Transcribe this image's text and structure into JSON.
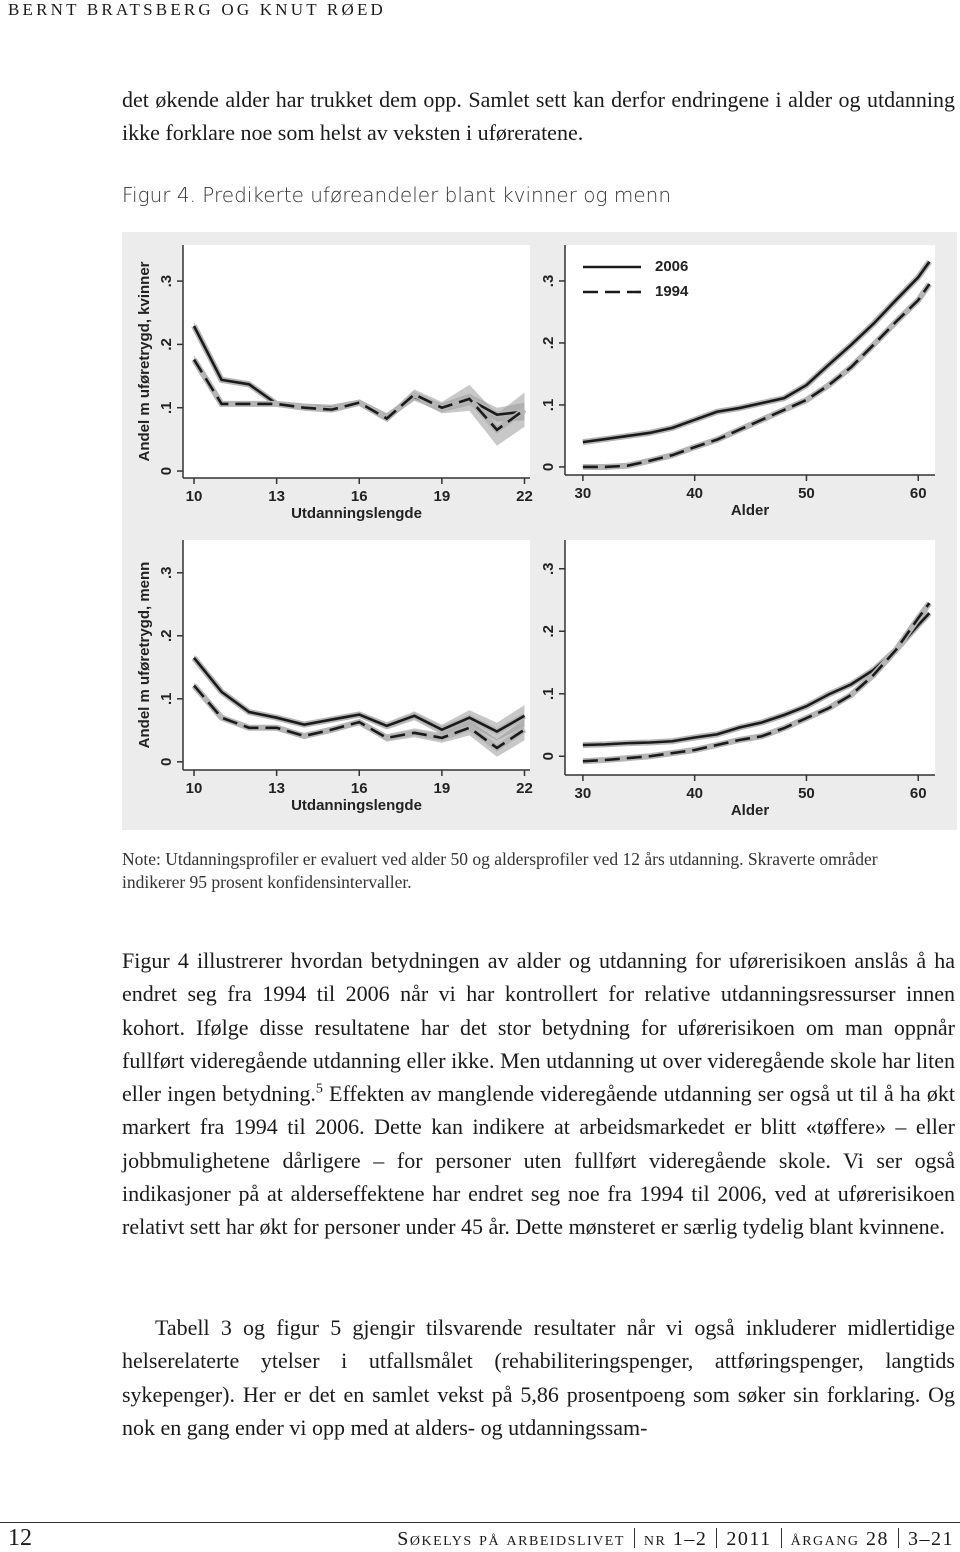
{
  "header": {
    "running_head": "BERNT BRATSBERG OG KNUT RØED"
  },
  "intro_paragraph": "det økende alder har trukket dem opp. Samlet sett kan derfor endringene i alder og utdanning ikke forklare noe som helst av veksten i uføreratene.",
  "figure": {
    "caption": "Figur 4. Predikerte uføreandeler blant kvinner og menn",
    "note": "Note: Utdanningsprofiler er evaluert ved alder 50 og aldersprofiler ved 12 års utdanning. Skraverte områder indikerer 95 prosent konfidensintervaller."
  },
  "chart_data": [
    {
      "type": "line",
      "xlabel": "Utdanningslengde",
      "ylabel": "Andel m uføretrygd, kvinner",
      "x": [
        10,
        11,
        12,
        13,
        14,
        15,
        16,
        17,
        18,
        19,
        20,
        21,
        22
      ],
      "series": [
        {
          "color": "#1a1a1a",
          "dash": false,
          "values": [
            0.229,
            0.144,
            0.137,
            0.106,
            0.102,
            0.1,
            0.108,
            0.086,
            0.117,
            0.1,
            0.113,
            0.089,
            0.094
          ],
          "lower": [
            0.222,
            0.139,
            0.132,
            0.102,
            0.098,
            0.096,
            0.104,
            0.081,
            0.111,
            0.093,
            0.104,
            0.078,
            0.08
          ],
          "upper": [
            0.236,
            0.149,
            0.142,
            0.11,
            0.106,
            0.104,
            0.112,
            0.091,
            0.123,
            0.107,
            0.122,
            0.1,
            0.108
          ]
        },
        {
          "color": "#1a1a1a",
          "dash": true,
          "values": [
            0.176,
            0.106,
            0.106,
            0.106,
            0.1,
            0.097,
            0.108,
            0.083,
            0.121,
            0.1,
            0.114,
            0.065,
            0.097
          ],
          "lower": [
            0.169,
            0.102,
            0.102,
            0.102,
            0.096,
            0.093,
            0.103,
            0.078,
            0.113,
            0.091,
            0.095,
            0.04,
            0.07
          ],
          "upper": [
            0.183,
            0.11,
            0.11,
            0.11,
            0.104,
            0.101,
            0.113,
            0.088,
            0.129,
            0.109,
            0.136,
            0.09,
            0.124
          ]
        }
      ],
      "xlim": [
        9.6,
        22.2
      ],
      "xticks": [
        10,
        13,
        16,
        19,
        22
      ],
      "ylim": [
        -0.011,
        0.357
      ],
      "yticks": [
        0,
        {
          "value": 0.1,
          "label": ".1"
        },
        {
          "value": 0.2,
          "label": ".2"
        },
        {
          "value": 0.3,
          "label": ".3"
        }
      ]
    },
    {
      "type": "line",
      "xlabel": "Alder",
      "legend": "upper left",
      "x": [
        30,
        32,
        34,
        36,
        38,
        40,
        42,
        44,
        46,
        48,
        50,
        52,
        54,
        56,
        58,
        60,
        61
      ],
      "series": [
        {
          "name": "2006",
          "color": "#1a1a1a",
          "dash": false,
          "values": [
            0.04,
            0.045,
            0.05,
            0.055,
            0.063,
            0.076,
            0.089,
            0.095,
            0.103,
            0.111,
            0.132,
            0.165,
            0.197,
            0.231,
            0.269,
            0.306,
            0.331
          ]
        },
        {
          "name": "1994",
          "color": "#1a1a1a",
          "dash": true,
          "values": [
            0.0,
            0.0,
            0.002,
            0.01,
            0.019,
            0.032,
            0.044,
            0.06,
            0.076,
            0.092,
            0.108,
            0.132,
            0.161,
            0.197,
            0.234,
            0.269,
            0.295
          ]
        }
      ],
      "xlim": [
        28.4,
        61.5
      ],
      "xticks": [
        30,
        40,
        50,
        60
      ],
      "ylim": [
        -0.013,
        0.358
      ],
      "yticks": [
        0,
        {
          "value": 0.1,
          "label": ".1"
        },
        {
          "value": 0.2,
          "label": ".2"
        },
        {
          "value": 0.3,
          "label": ".3"
        }
      ]
    },
    {
      "type": "line",
      "xlabel": "Utdanningslengde",
      "ylabel": "Andel m uføretrygd, menn",
      "x": [
        10,
        11,
        12,
        13,
        14,
        15,
        16,
        17,
        18,
        19,
        20,
        21,
        22
      ],
      "series": [
        {
          "color": "#1a1a1a",
          "dash": false,
          "values": [
            0.165,
            0.111,
            0.079,
            0.07,
            0.059,
            0.067,
            0.075,
            0.057,
            0.073,
            0.051,
            0.07,
            0.048,
            0.073
          ],
          "lower": [
            0.16,
            0.107,
            0.075,
            0.066,
            0.055,
            0.062,
            0.07,
            0.051,
            0.066,
            0.043,
            0.058,
            0.034,
            0.056
          ],
          "upper": [
            0.17,
            0.115,
            0.083,
            0.074,
            0.063,
            0.072,
            0.08,
            0.063,
            0.08,
            0.059,
            0.082,
            0.062,
            0.09
          ]
        },
        {
          "color": "#1a1a1a",
          "dash": true,
          "values": [
            0.121,
            0.07,
            0.054,
            0.054,
            0.041,
            0.051,
            0.063,
            0.038,
            0.046,
            0.038,
            0.054,
            0.022,
            0.051
          ],
          "lower": [
            0.116,
            0.066,
            0.05,
            0.05,
            0.037,
            0.046,
            0.058,
            0.032,
            0.039,
            0.03,
            0.042,
            0.008,
            0.034
          ],
          "upper": [
            0.126,
            0.074,
            0.058,
            0.058,
            0.045,
            0.056,
            0.068,
            0.044,
            0.053,
            0.046,
            0.066,
            0.036,
            0.068
          ]
        }
      ],
      "xlim": [
        9.6,
        22.2
      ],
      "xticks": [
        10,
        13,
        16,
        19,
        22
      ],
      "ylim": [
        -0.013,
        0.352
      ],
      "yticks": [
        0,
        {
          "value": 0.1,
          "label": ".1"
        },
        {
          "value": 0.2,
          "label": ".2"
        },
        {
          "value": 0.3,
          "label": ".3"
        }
      ]
    },
    {
      "type": "line",
      "xlabel": "Alder",
      "x": [
        30,
        32,
        34,
        36,
        38,
        40,
        42,
        44,
        46,
        48,
        50,
        52,
        54,
        56,
        58,
        60,
        61
      ],
      "series": [
        {
          "color": "#1a1a1a",
          "dash": false,
          "values": [
            0.018,
            0.019,
            0.021,
            0.022,
            0.024,
            0.03,
            0.035,
            0.046,
            0.054,
            0.066,
            0.08,
            0.099,
            0.115,
            0.138,
            0.17,
            0.21,
            0.229
          ]
        },
        {
          "color": "#1a1a1a",
          "dash": true,
          "values": [
            -0.008,
            -0.006,
            -0.003,
            0.0,
            0.005,
            0.01,
            0.018,
            0.026,
            0.032,
            0.045,
            0.061,
            0.077,
            0.098,
            0.13,
            0.17,
            0.221,
            0.245
          ]
        }
      ],
      "xlim": [
        28.4,
        61.5
      ],
      "xticks": [
        30,
        40,
        50,
        60
      ],
      "ylim": [
        -0.03,
        0.346
      ],
      "yticks": [
        0,
        {
          "value": 0.1,
          "label": ".1"
        },
        {
          "value": 0.2,
          "label": ".2"
        },
        {
          "value": 0.3,
          "label": ".3"
        }
      ]
    }
  ],
  "body": {
    "paragraph_1": {
      "before": "Figur 4 illustrerer hvordan betydningen av alder og utdanning for uførerisikoen anslås å ha endret seg fra 1994 til 2006 når vi har kontrollert for relative utdanningsressurser innen kohort. Ifølge disse resultatene har det stor betydning for uførerisikoen om man oppnår fullført videregående utdanning eller ikke. Men utdanning ut over videregående skole har liten eller ingen betydning.",
      "footnote_ref": "5",
      "after": " Effekten av manglende videregående utdanning ser også ut til å ha økt markert fra 1994 til 2006. Dette kan indikere at arbeidsmarkedet er blitt «tøffere» – eller jobbmulighetene dårligere – for personer uten fullført videregående skole. Vi ser også indikasjoner på at alderseffektene har endret seg noe fra 1994 til 2006, ved at uførerisikoen relativt sett har økt for personer under 45 år. Dette mønsteret er særlig tydelig blant kvinnene."
    },
    "paragraph_2": "Tabell 3 og figur 5 gjengir tilsvarende resultater når vi også inkluderer midlertidige helserelaterte ytelser i utfallsmålet (rehabiliteringspenger, attføringspenger, langtids sykepenger). Her er det en samlet vekst på 5,86 prosentpoeng som søker sin forklaring. Og nok en gang ender vi opp med at alders- og utdanningssam-"
  },
  "footer": {
    "page_number": "12",
    "journal": "Søkelys på arbeidslivet",
    "issue": "nr 1–2",
    "year": "2011",
    "volume": "årgang 28",
    "pages": "3–21"
  }
}
